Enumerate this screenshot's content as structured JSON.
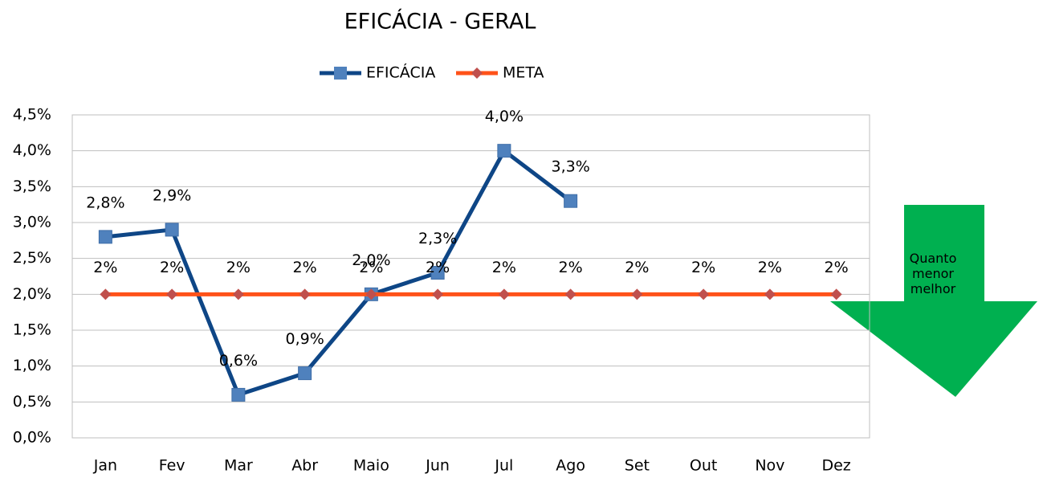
{
  "chart_data": {
    "type": "line",
    "title": "EFICÁCIA - GERAL",
    "categories": [
      "Jan",
      "Fev",
      "Mar",
      "Abr",
      "Maio",
      "Jun",
      "Jul",
      "Ago",
      "Set",
      "Out",
      "Nov",
      "Dez"
    ],
    "series": [
      {
        "name": "EFICÁCIA",
        "color": "#0e4686",
        "marker_color": "#4f81bd",
        "marker": "square",
        "values": [
          2.8,
          2.9,
          0.6,
          0.9,
          2.0,
          2.3,
          4.0,
          3.3,
          null,
          null,
          null,
          null
        ],
        "value_labels": [
          "2,8%",
          "2,9%",
          "0,6%",
          "0,9%",
          "2,0%",
          "2,3%",
          "4,0%",
          "3,3%",
          null,
          null,
          null,
          null
        ]
      },
      {
        "name": "META",
        "color": "#ff5219",
        "marker_color": "#c0504d",
        "marker": "diamond",
        "values": [
          2,
          2,
          2,
          2,
          2,
          2,
          2,
          2,
          2,
          2,
          2,
          2
        ],
        "value_labels": [
          "2%",
          "2%",
          "2%",
          "2%",
          "2%",
          "2%",
          "2%",
          "2%",
          "2%",
          "2%",
          "2%",
          "2%"
        ]
      }
    ],
    "ylim": [
      0,
      4.5
    ],
    "yticks": [
      {
        "value": 0,
        "label": "0,0%"
      },
      {
        "value": 0.5,
        "label": "0,5%"
      },
      {
        "value": 1,
        "label": "1,0%"
      },
      {
        "value": 1.5,
        "label": "1,5%"
      },
      {
        "value": 2,
        "label": "2,0%"
      },
      {
        "value": 2.5,
        "label": "2,5%"
      },
      {
        "value": 3,
        "label": "3,0%"
      },
      {
        "value": 3.5,
        "label": "3,5%"
      },
      {
        "value": 4,
        "label": "4,0%"
      },
      {
        "value": 4.5,
        "label": "4,5%"
      }
    ],
    "grid": true,
    "legend": "top",
    "annotation": "Quanto menor melhor",
    "annotation_color": "#00b050"
  }
}
